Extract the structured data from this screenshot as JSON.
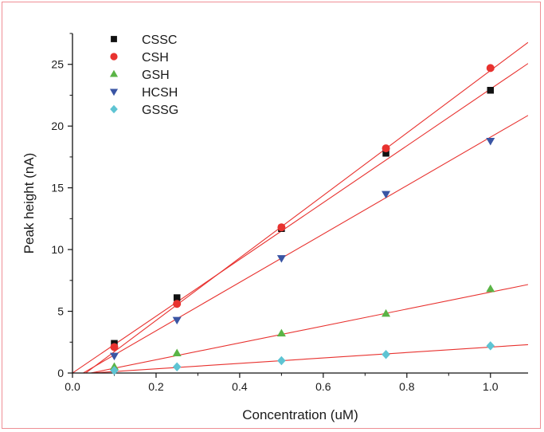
{
  "chart_data": {
    "type": "scatter",
    "xlabel": "Concentration (uM)",
    "ylabel": "Peak height (nA)",
    "xlim": [
      0.0,
      1.09
    ],
    "ylim": [
      0,
      27.5
    ],
    "xticks": [
      0.0,
      0.2,
      0.4,
      0.6,
      0.8,
      1.0
    ],
    "xtick_labels": [
      "0.0",
      "0.2",
      "0.4",
      "0.6",
      "0.8",
      "1.0"
    ],
    "yticks": [
      0,
      5,
      10,
      15,
      20,
      25
    ],
    "ytick_labels": [
      "0",
      "5",
      "10",
      "15",
      "20",
      "25"
    ],
    "legend_position": "top-left",
    "fit_line_color": "#e8322f",
    "series": [
      {
        "name": "CSSC",
        "marker": "square",
        "color": "#111111",
        "x": [
          0.1,
          0.25,
          0.5,
          0.75,
          1.0
        ],
        "y": [
          2.4,
          6.1,
          11.7,
          17.8,
          22.9
        ],
        "fit": {
          "slope": 23.0,
          "intercept": 0.0
        }
      },
      {
        "name": "CSH",
        "marker": "circle",
        "color": "#e8322f",
        "x": [
          0.1,
          0.25,
          0.5,
          0.75,
          1.0
        ],
        "y": [
          2.1,
          5.6,
          11.8,
          18.2,
          24.7
        ],
        "fit": {
          "slope": 25.3,
          "intercept": -0.8
        }
      },
      {
        "name": "GSH",
        "marker": "triangle-up",
        "color": "#5ab446",
        "x": [
          0.1,
          0.25,
          0.5,
          0.75,
          1.0
        ],
        "y": [
          0.5,
          1.6,
          3.2,
          4.8,
          6.8
        ],
        "fit": {
          "slope": 6.85,
          "intercept": -0.3
        }
      },
      {
        "name": "HCSH",
        "marker": "triangle-down",
        "color": "#3a55a4",
        "x": [
          0.1,
          0.25,
          0.5,
          0.75,
          1.0
        ],
        "y": [
          1.4,
          4.3,
          9.3,
          14.5,
          18.8
        ],
        "fit": {
          "slope": 19.6,
          "intercept": -0.5
        }
      },
      {
        "name": "GSSG",
        "marker": "diamond",
        "color": "#5ec4d3",
        "x": [
          0.1,
          0.25,
          0.5,
          0.75,
          1.0
        ],
        "y": [
          0.2,
          0.5,
          1.0,
          1.5,
          2.2
        ],
        "fit": {
          "slope": 2.2,
          "intercept": -0.1
        }
      }
    ]
  }
}
